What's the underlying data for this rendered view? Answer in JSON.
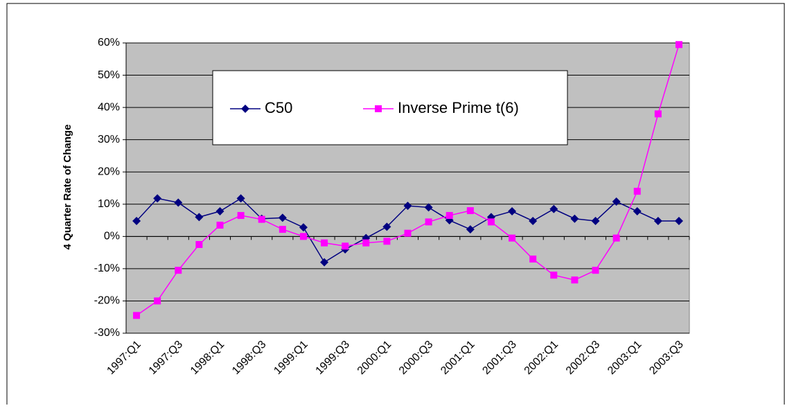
{
  "chart_data": {
    "type": "line",
    "y_label": "4 Quarter Rate of Change",
    "categories": [
      "1997:Q1",
      null,
      "1997:Q3",
      null,
      "1998:Q1",
      null,
      "1998:Q3",
      null,
      "1999:Q1",
      null,
      "1999:Q3",
      null,
      "2000:Q1",
      null,
      "2000:Q3",
      null,
      "2001:Q1",
      null,
      "2001:Q3",
      null,
      "2002:Q1",
      null,
      "2002:Q3",
      null,
      "2003:Q1",
      null,
      "2003:Q3"
    ],
    "series": [
      {
        "name": "C50",
        "color": "#000080",
        "marker": "diamond",
        "values": [
          4.8,
          11.8,
          10.5,
          6,
          7.8,
          11.8,
          5.5,
          5.8,
          2.8,
          -8,
          -4,
          -0.5,
          3,
          9.5,
          9,
          5,
          2.2,
          6,
          7.8,
          4.8,
          8.5,
          5.5,
          4.8,
          10.8,
          7.8,
          4.8,
          4.8
        ]
      },
      {
        "name": "Inverse Prime t(6)",
        "color": "#ff00ff",
        "marker": "square",
        "values": [
          -24.5,
          -20,
          -10.5,
          -2.5,
          3.5,
          6.5,
          5.3,
          2.2,
          0,
          -2,
          -3,
          -2,
          -1.5,
          1,
          4.5,
          6.5,
          8,
          4.5,
          -0.5,
          -7,
          -12,
          -13.5,
          -10.5,
          -0.5,
          14,
          38,
          59.5
        ]
      }
    ],
    "ylim": [
      -30,
      60
    ],
    "yticks": [
      {
        "value": -30,
        "label": "-30%"
      },
      {
        "value": -20,
        "label": "-20%"
      },
      {
        "value": -10,
        "label": "-10%"
      },
      {
        "value": 0,
        "label": "0%"
      },
      {
        "value": 10,
        "label": "10%"
      },
      {
        "value": 20,
        "label": "20%"
      },
      {
        "value": 30,
        "label": "30%"
      },
      {
        "value": 40,
        "label": "40%"
      },
      {
        "value": 50,
        "label": "50%"
      },
      {
        "value": 60,
        "label": "60%"
      }
    ],
    "grid": true,
    "plot_background": "#c0c0c0"
  }
}
